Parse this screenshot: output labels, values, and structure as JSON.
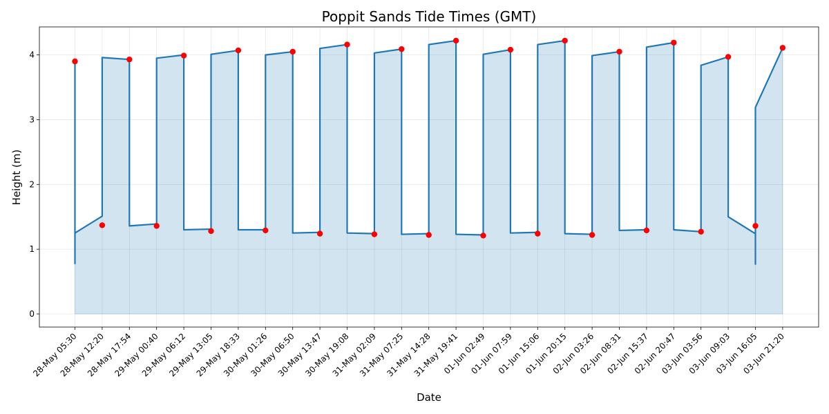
{
  "chart_data": {
    "type": "line",
    "title": "Poppit Sands Tide Times (GMT)",
    "xlabel": "Date",
    "ylabel": "Height (m)",
    "ylim": [
      0,
      4.2
    ],
    "y_ticks": [
      "0",
      "1",
      "2",
      "3",
      "4"
    ],
    "grid": true,
    "colors": {
      "line": "#1f77b4",
      "fill": "#1f77b4",
      "points": "#ff0000"
    },
    "categories": [
      "28-May 05:30",
      "28-May 12:20",
      "28-May 17:54",
      "29-May 00:40",
      "29-May 06:12",
      "29-May 13:05",
      "29-May 18:33",
      "30-May 01:26",
      "30-May 06:50",
      "30-May 13:47",
      "30-May 19:08",
      "31-May 02:09",
      "31-May 07:25",
      "31-May 14:28",
      "31-May 19:41",
      "01-Jun 02:49",
      "01-Jun 07:59",
      "01-Jun 15:06",
      "01-Jun 20:15",
      "02-Jun 03:26",
      "02-Jun 08:31",
      "02-Jun 15:37",
      "02-Jun 20:47",
      "03-Jun 03:56",
      "03-Jun 09:03",
      "03-Jun 16:05",
      "03-Jun 21:20"
    ],
    "points": [
      3.9,
      1.37,
      3.93,
      1.36,
      3.99,
      1.28,
      4.07,
      1.29,
      4.05,
      1.24,
      4.16,
      1.23,
      4.09,
      1.22,
      4.22,
      1.21,
      4.08,
      1.24,
      4.22,
      1.22,
      4.05,
      1.29,
      4.19,
      1.27,
      3.97,
      1.36,
      4.11
    ],
    "line_path": [
      [
        0,
        0.77
      ],
      [
        0,
        3.9
      ],
      [
        0,
        1.25
      ],
      [
        1,
        1.51
      ],
      [
        1,
        3.96
      ],
      [
        2,
        3.93
      ],
      [
        2,
        1.36
      ],
      [
        3,
        1.39
      ],
      [
        3,
        3.95
      ],
      [
        4,
        4.0
      ],
      [
        4,
        1.3
      ],
      [
        5,
        1.31
      ],
      [
        5,
        4.01
      ],
      [
        6,
        4.07
      ],
      [
        6,
        1.3
      ],
      [
        7,
        1.3
      ],
      [
        7,
        4.0
      ],
      [
        8,
        4.05
      ],
      [
        8,
        1.25
      ],
      [
        9,
        1.26
      ],
      [
        9,
        4.1
      ],
      [
        10,
        4.16
      ],
      [
        10,
        1.25
      ],
      [
        11,
        1.24
      ],
      [
        11,
        4.03
      ],
      [
        12,
        4.09
      ],
      [
        12,
        1.23
      ],
      [
        13,
        1.24
      ],
      [
        13,
        4.16
      ],
      [
        14,
        4.22
      ],
      [
        14,
        1.23
      ],
      [
        15,
        1.22
      ],
      [
        15,
        4.01
      ],
      [
        16,
        4.08
      ],
      [
        16,
        1.25
      ],
      [
        17,
        1.26
      ],
      [
        17,
        4.16
      ],
      [
        18,
        4.22
      ],
      [
        18,
        1.24
      ],
      [
        19,
        1.23
      ],
      [
        19,
        3.99
      ],
      [
        20,
        4.05
      ],
      [
        20,
        1.29
      ],
      [
        21,
        1.3
      ],
      [
        21,
        4.12
      ],
      [
        22,
        4.19
      ],
      [
        22,
        1.3
      ],
      [
        23,
        1.27
      ],
      [
        23,
        3.84
      ],
      [
        24,
        3.97
      ],
      [
        24,
        1.5
      ],
      [
        25,
        1.24
      ],
      [
        25,
        0.77
      ],
      [
        25,
        3.19
      ],
      [
        26,
        4.11
      ]
    ]
  }
}
